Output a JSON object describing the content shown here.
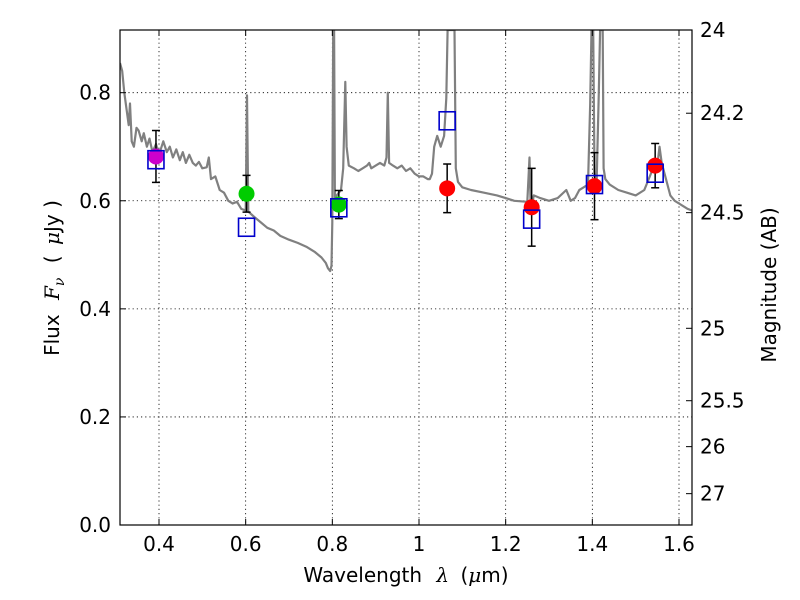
{
  "chart_data": {
    "type": "scatter",
    "xlabel": "Wavelength",
    "xlabel_symbol": "λ",
    "xlabel_unit_open": "(",
    "xlabel_unit_mu": "μ",
    "xlabel_unit_rest": "m)",
    "ylabel": "Flux",
    "ylabel_symbol": "F",
    "ylabel_subscript": "ν",
    "ylabel_unit_open": "(",
    "ylabel_unit_mu": "μ",
    "ylabel_unit_rest": "Jy )",
    "y2label": "Magnitude (AB)",
    "xlim": [
      0.31,
      1.63
    ],
    "ylim": [
      0.0,
      0.916
    ],
    "grid": true,
    "x_ticks": [
      0.4,
      0.6,
      0.8,
      1.0,
      1.2,
      1.4,
      1.6
    ],
    "x_tick_labels": [
      "0.4",
      "0.6",
      "0.8",
      "1",
      "1.2",
      "1.4",
      "1.6"
    ],
    "y_ticks": [
      0.0,
      0.2,
      0.4,
      0.6,
      0.8
    ],
    "y_tick_labels": [
      "0.0",
      "0.2",
      "0.4",
      "0.6",
      "0.8"
    ],
    "y2_ticks": [
      {
        "label": "24",
        "flux": 0.916
      },
      {
        "label": "24.2",
        "flux": 0.762
      },
      {
        "label": "24.5",
        "flux": 0.578
      },
      {
        "label": "25",
        "flux": 0.364
      },
      {
        "label": "25.5",
        "flux": 0.23
      },
      {
        "label": "26",
        "flux": 0.145
      },
      {
        "label": "27",
        "flux": 0.058
      }
    ],
    "observed_points": [
      {
        "x": 0.393,
        "y": 0.682,
        "yerr": [
          0.048,
          0.048
        ],
        "color": "#cc00cc"
      },
      {
        "x": 0.602,
        "y": 0.613,
        "yerr": [
          0.034,
          0.034
        ],
        "color": "#00cc00"
      },
      {
        "x": 0.815,
        "y": 0.593,
        "yerr": [
          0.026,
          0.026
        ],
        "color": "#00cc00"
      },
      {
        "x": 1.065,
        "y": 0.623,
        "yerr": [
          0.045,
          0.045
        ],
        "color": "#ff0000"
      },
      {
        "x": 1.26,
        "y": 0.588,
        "yerr": [
          0.072,
          0.072
        ],
        "color": "#ff0000"
      },
      {
        "x": 1.405,
        "y": 0.627,
        "yerr": [
          0.062,
          0.062
        ],
        "color": "#ff0000"
      },
      {
        "x": 1.545,
        "y": 0.665,
        "yerr": [
          0.041,
          0.041
        ],
        "color": "#ff0000"
      }
    ],
    "model_points": [
      {
        "x": 0.393,
        "y": 0.676
      },
      {
        "x": 0.602,
        "y": 0.551
      },
      {
        "x": 0.815,
        "y": 0.587
      },
      {
        "x": 1.065,
        "y": 0.748
      },
      {
        "x": 1.26,
        "y": 0.566
      },
      {
        "x": 1.405,
        "y": 0.63
      },
      {
        "x": 1.545,
        "y": 0.651
      }
    ],
    "model_marker_color": "#0000cc",
    "errorbar_color": "#000000",
    "spectrum": {
      "color": "#808080",
      "points": [
        [
          0.31,
          0.855
        ],
        [
          0.315,
          0.84
        ],
        [
          0.32,
          0.8
        ],
        [
          0.325,
          0.77
        ],
        [
          0.33,
          0.74
        ],
        [
          0.333,
          0.78
        ],
        [
          0.337,
          0.71
        ],
        [
          0.342,
          0.7
        ],
        [
          0.348,
          0.735
        ],
        [
          0.353,
          0.73
        ],
        [
          0.36,
          0.71
        ],
        [
          0.365,
          0.725
        ],
        [
          0.372,
          0.7
        ],
        [
          0.378,
          0.715
        ],
        [
          0.385,
          0.69
        ],
        [
          0.393,
          0.705
        ],
        [
          0.4,
          0.685
        ],
        [
          0.41,
          0.71
        ],
        [
          0.418,
          0.69
        ],
        [
          0.425,
          0.7
        ],
        [
          0.432,
          0.68
        ],
        [
          0.44,
          0.695
        ],
        [
          0.448,
          0.675
        ],
        [
          0.455,
          0.69
        ],
        [
          0.462,
          0.67
        ],
        [
          0.47,
          0.685
        ],
        [
          0.478,
          0.67
        ],
        [
          0.485,
          0.665
        ],
        [
          0.492,
          0.672
        ],
        [
          0.5,
          0.66
        ],
        [
          0.51,
          0.662
        ],
        [
          0.515,
          0.68
        ],
        [
          0.52,
          0.64
        ],
        [
          0.53,
          0.645
        ],
        [
          0.54,
          0.62
        ],
        [
          0.55,
          0.615
        ],
        [
          0.56,
          0.6
        ],
        [
          0.57,
          0.595
        ],
        [
          0.58,
          0.598
        ],
        [
          0.59,
          0.585
        ],
        [
          0.6,
          0.582
        ],
        [
          0.603,
          0.795
        ],
        [
          0.606,
          0.58
        ],
        [
          0.62,
          0.57
        ],
        [
          0.635,
          0.56
        ],
        [
          0.65,
          0.55
        ],
        [
          0.665,
          0.545
        ],
        [
          0.68,
          0.535
        ],
        [
          0.7,
          0.528
        ],
        [
          0.72,
          0.522
        ],
        [
          0.74,
          0.515
        ],
        [
          0.76,
          0.505
        ],
        [
          0.775,
          0.495
        ],
        [
          0.785,
          0.485
        ],
        [
          0.79,
          0.475
        ],
        [
          0.795,
          0.47
        ],
        [
          0.798,
          0.48
        ],
        [
          0.8,
          0.56
        ],
        [
          0.802,
          0.916
        ],
        [
          0.804,
          0.916
        ],
        [
          0.806,
          0.6
        ],
        [
          0.81,
          0.61
        ],
        [
          0.815,
          0.615
        ],
        [
          0.82,
          0.62
        ],
        [
          0.825,
          0.66
        ],
        [
          0.83,
          0.82
        ],
        [
          0.833,
          0.7
        ],
        [
          0.838,
          0.665
        ],
        [
          0.85,
          0.66
        ],
        [
          0.86,
          0.655
        ],
        [
          0.87,
          0.66
        ],
        [
          0.88,
          0.665
        ],
        [
          0.885,
          0.67
        ],
        [
          0.89,
          0.66
        ],
        [
          0.9,
          0.665
        ],
        [
          0.91,
          0.67
        ],
        [
          0.92,
          0.665
        ],
        [
          0.925,
          0.68
        ],
        [
          0.928,
          0.8
        ],
        [
          0.931,
          0.67
        ],
        [
          0.94,
          0.665
        ],
        [
          0.95,
          0.66
        ],
        [
          0.96,
          0.665
        ],
        [
          0.97,
          0.655
        ],
        [
          0.98,
          0.66
        ],
        [
          0.99,
          0.65
        ],
        [
          1.0,
          0.645
        ],
        [
          1.01,
          0.645
        ],
        [
          1.02,
          0.64
        ],
        [
          1.025,
          0.64
        ],
        [
          1.03,
          0.65
        ],
        [
          1.035,
          0.7
        ],
        [
          1.042,
          0.72
        ],
        [
          1.05,
          0.7
        ],
        [
          1.058,
          0.72
        ],
        [
          1.063,
          0.79
        ],
        [
          1.066,
          0.916
        ],
        [
          1.082,
          0.916
        ],
        [
          1.085,
          0.66
        ],
        [
          1.09,
          0.635
        ],
        [
          1.1,
          0.625
        ],
        [
          1.12,
          0.62
        ],
        [
          1.15,
          0.615
        ],
        [
          1.18,
          0.61
        ],
        [
          1.2,
          0.605
        ],
        [
          1.22,
          0.6
        ],
        [
          1.25,
          0.598
        ],
        [
          1.255,
          0.68
        ],
        [
          1.258,
          0.58
        ],
        [
          1.265,
          0.61
        ],
        [
          1.28,
          0.605
        ],
        [
          1.3,
          0.6
        ],
        [
          1.32,
          0.605
        ],
        [
          1.34,
          0.62
        ],
        [
          1.35,
          0.6
        ],
        [
          1.36,
          0.605
        ],
        [
          1.37,
          0.62
        ],
        [
          1.38,
          0.625
        ],
        [
          1.39,
          0.63
        ],
        [
          1.395,
          0.78
        ],
        [
          1.398,
          0.916
        ],
        [
          1.402,
          0.916
        ],
        [
          1.405,
          0.65
        ],
        [
          1.41,
          0.64
        ],
        [
          1.415,
          0.8
        ],
        [
          1.418,
          0.916
        ],
        [
          1.424,
          0.916
        ],
        [
          1.426,
          0.66
        ],
        [
          1.43,
          0.64
        ],
        [
          1.44,
          0.63
        ],
        [
          1.46,
          0.62
        ],
        [
          1.48,
          0.615
        ],
        [
          1.5,
          0.61
        ],
        [
          1.52,
          0.62
        ],
        [
          1.53,
          0.64
        ],
        [
          1.54,
          0.66
        ],
        [
          1.55,
          0.665
        ],
        [
          1.555,
          0.7
        ],
        [
          1.56,
          0.67
        ],
        [
          1.57,
          0.64
        ],
        [
          1.58,
          0.61
        ],
        [
          1.59,
          0.6
        ],
        [
          1.6,
          0.595
        ],
        [
          1.61,
          0.59
        ],
        [
          1.62,
          0.585
        ],
        [
          1.63,
          0.582
        ]
      ]
    }
  }
}
